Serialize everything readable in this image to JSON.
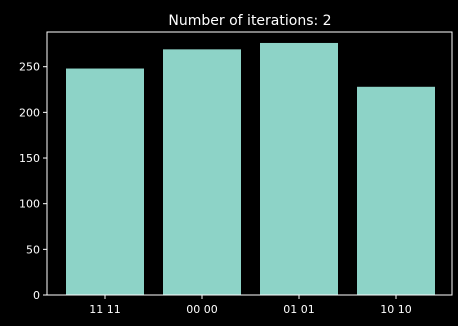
{
  "chart_data": {
    "type": "bar",
    "title": "Number of iterations: 2",
    "xlabel": "",
    "ylabel": "",
    "categories": [
      "11 11",
      "00 00",
      "01 01",
      "10 10"
    ],
    "values": [
      248,
      269,
      276,
      228
    ],
    "ylim": [
      0,
      288
    ],
    "yticks": [
      0,
      50,
      100,
      150,
      200,
      250
    ],
    "grid": false,
    "bar_color": "#8dd3c7",
    "axes_color": "#ffffff",
    "background": "#000000"
  }
}
